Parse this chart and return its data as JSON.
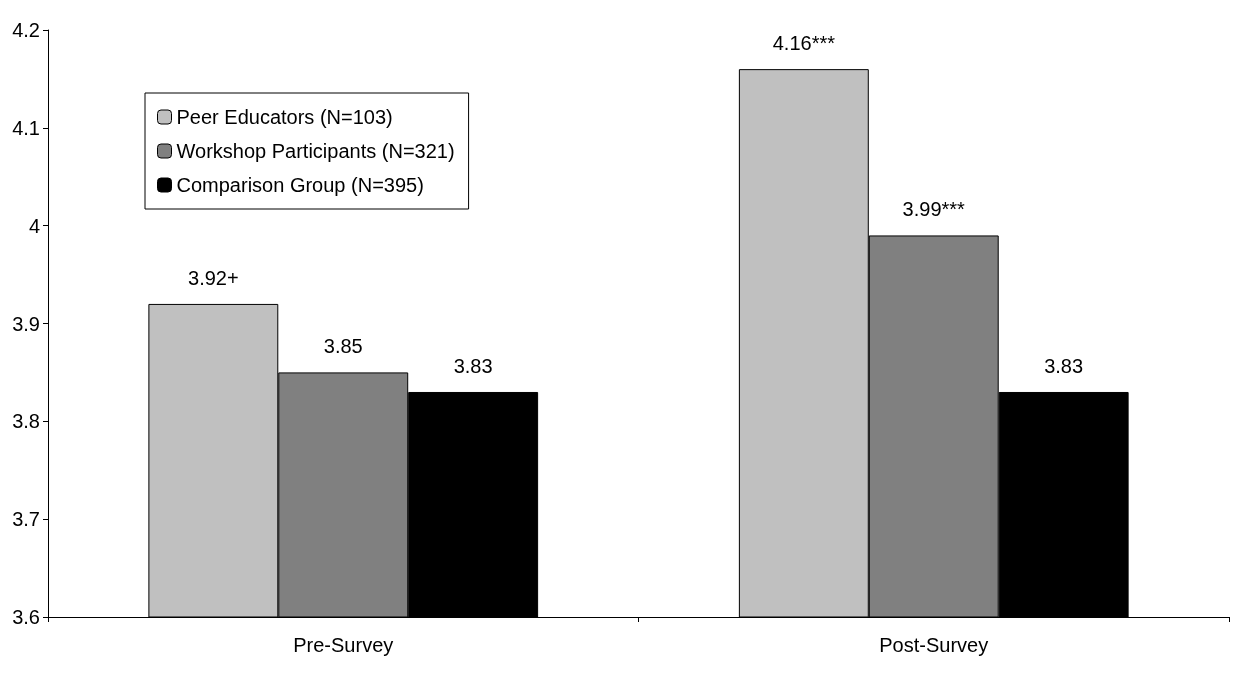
{
  "chart_data": {
    "type": "bar",
    "categories": [
      "Pre-Survey",
      "Post-Survey"
    ],
    "series": [
      {
        "name": "Peer Educators (N=103)",
        "color": "#c0c0c0",
        "values": [
          3.92,
          4.16
        ],
        "value_labels": [
          "3.92+",
          "4.16***"
        ]
      },
      {
        "name": "Workshop Participants (N=321)",
        "color": "#808080",
        "values": [
          3.85,
          3.99
        ],
        "value_labels": [
          "3.85",
          "3.99***"
        ]
      },
      {
        "name": "Comparison Group (N=395)",
        "color": "#000000",
        "values": [
          3.83,
          3.83
        ],
        "value_labels": [
          "3.83",
          "3.83"
        ]
      }
    ],
    "ylim": [
      3.6,
      4.2
    ],
    "yticks": [
      3.6,
      3.7,
      3.8,
      3.9,
      4,
      4.1,
      4.2
    ],
    "grid": false,
    "legend": "top left"
  }
}
